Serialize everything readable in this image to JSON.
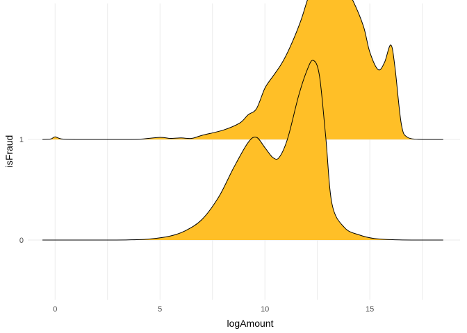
{
  "chart_data": {
    "type": "area",
    "title": "",
    "xlabel": "logAmount",
    "ylabel": "isFraud",
    "xlim": [
      -1.3,
      19.3
    ],
    "x_ticks": [
      0,
      5,
      10,
      15
    ],
    "x_minor_gridlines": [
      2.5,
      7.5,
      12.5,
      17.5
    ],
    "categories": [
      "0",
      "1"
    ],
    "grid": true,
    "legend": "none",
    "fill_color": "#FFBF27",
    "line_color": "#000000",
    "series": [
      {
        "category": "0",
        "points": [
          [
            -0.6,
            0
          ],
          [
            2,
            0
          ],
          [
            3.5,
            0.002
          ],
          [
            4.5,
            0.01
          ],
          [
            5.5,
            0.04
          ],
          [
            6.2,
            0.09
          ],
          [
            7,
            0.2
          ],
          [
            7.8,
            0.42
          ],
          [
            8.5,
            0.7
          ],
          [
            9.2,
            0.95
          ],
          [
            9.6,
            1.0
          ],
          [
            10,
            0.9
          ],
          [
            10.4,
            0.8
          ],
          [
            10.7,
            0.81
          ],
          [
            11.1,
            1.0
          ],
          [
            11.6,
            1.4
          ],
          [
            12.0,
            1.65
          ],
          [
            12.3,
            1.75
          ],
          [
            12.6,
            1.6
          ],
          [
            12.9,
            1.0
          ],
          [
            13.2,
            0.35
          ],
          [
            13.8,
            0.12
          ],
          [
            14.5,
            0.05
          ],
          [
            15.2,
            0.015
          ],
          [
            16,
            0.004
          ],
          [
            17,
            0
          ],
          [
            18.5,
            0
          ]
        ]
      },
      {
        "category": "1",
        "points": [
          [
            -0.6,
            0
          ],
          [
            -0.2,
            0.005
          ],
          [
            0,
            0.025
          ],
          [
            0.3,
            0.005
          ],
          [
            1,
            0
          ],
          [
            3,
            0
          ],
          [
            4,
            0.002
          ],
          [
            5,
            0.02
          ],
          [
            5.5,
            0.01
          ],
          [
            6,
            0.015
          ],
          [
            6.5,
            0.01
          ],
          [
            7,
            0.04
          ],
          [
            8,
            0.09
          ],
          [
            8.8,
            0.16
          ],
          [
            9.2,
            0.24
          ],
          [
            9.6,
            0.3
          ],
          [
            10,
            0.5
          ],
          [
            10.4,
            0.62
          ],
          [
            10.8,
            0.74
          ],
          [
            11.2,
            0.9
          ],
          [
            11.7,
            1.15
          ],
          [
            12.1,
            1.4
          ],
          [
            12.5,
            1.55
          ],
          [
            12.9,
            1.65
          ],
          [
            13.3,
            1.55
          ],
          [
            13.7,
            1.52
          ],
          [
            14.2,
            1.35
          ],
          [
            14.7,
            1.1
          ],
          [
            15.0,
            0.85
          ],
          [
            15.4,
            0.68
          ],
          [
            15.7,
            0.75
          ],
          [
            16.0,
            0.92
          ],
          [
            16.2,
            0.7
          ],
          [
            16.5,
            0.15
          ],
          [
            16.8,
            0.02
          ],
          [
            17.5,
            0
          ],
          [
            18.5,
            0
          ]
        ]
      }
    ]
  }
}
